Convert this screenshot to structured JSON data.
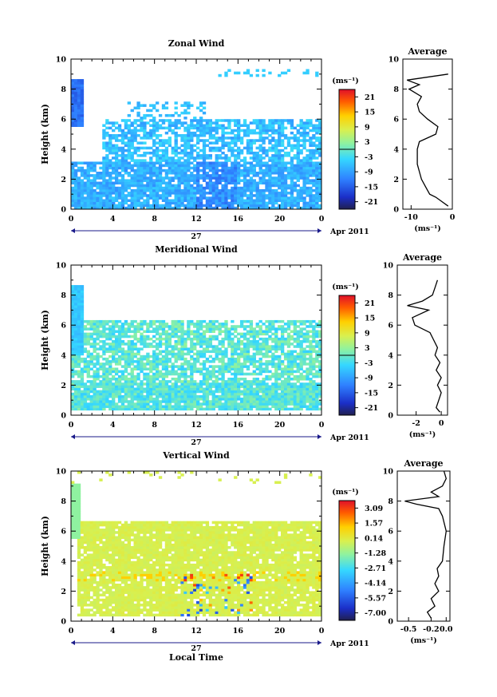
{
  "chart_data": [
    {
      "type": "heatmap",
      "title": "Zonal Wind",
      "ylabel": "Height (km)",
      "xlabel": "",
      "ylim": [
        0,
        10
      ],
      "xlim": [
        0,
        24
      ],
      "x_ticks": [
        "0",
        "4",
        "8",
        "12",
        "16",
        "20",
        "0"
      ],
      "y_ticks": [
        "0",
        "2",
        "4",
        "6",
        "8",
        "10"
      ],
      "date_label": "27",
      "month_label": "Apr 2011",
      "colorbar": {
        "unit": "(ms⁻¹)",
        "ticks": [
          "21",
          "15",
          "9",
          "3",
          "-3",
          "-9",
          "-15",
          "-21"
        ],
        "range": [
          -24,
          24
        ]
      },
      "average": {
        "title": "Average",
        "xlabel": "(ms⁻¹)",
        "x_ticks": [
          "-10",
          "0"
        ],
        "xlim": [
          -12,
          0
        ],
        "heights": [
          0.2,
          0.5,
          0.8,
          1.0,
          1.5,
          2.0,
          2.5,
          3.0,
          3.5,
          4.0,
          4.5,
          5.0,
          5.5,
          6.0,
          6.5,
          7.0,
          7.5,
          8.0,
          8.3,
          8.6,
          9.0
        ],
        "values": [
          -1.0,
          -2.5,
          -4.0,
          -5.5,
          -6.5,
          -7.5,
          -8.0,
          -8.5,
          -8.5,
          -8.5,
          -8.0,
          -4.0,
          -3.5,
          -6.0,
          -8.0,
          -8.5,
          -7.5,
          -10.5,
          -8.0,
          -11.0,
          -1.0
        ]
      }
    },
    {
      "type": "heatmap",
      "title": "Meridional Wind",
      "ylabel": "Height (km)",
      "xlabel": "",
      "ylim": [
        0,
        10
      ],
      "xlim": [
        0,
        24
      ],
      "x_ticks": [
        "0",
        "4",
        "8",
        "12",
        "16",
        "20",
        "0"
      ],
      "y_ticks": [
        "0",
        "2",
        "4",
        "6",
        "8",
        "10"
      ],
      "date_label": "27",
      "month_label": "Apr 2011",
      "colorbar": {
        "unit": "(ms⁻¹)",
        "ticks": [
          "21",
          "15",
          "9",
          "3",
          "-3",
          "-9",
          "-15",
          "-21"
        ],
        "range": [
          -24,
          24
        ]
      },
      "average": {
        "title": "Average",
        "xlabel": "(ms⁻¹)",
        "x_ticks": [
          "-2",
          "0"
        ],
        "xlim": [
          -3.5,
          0.5
        ],
        "heights": [
          0.2,
          0.5,
          1.0,
          1.5,
          2.0,
          2.5,
          3.0,
          3.5,
          4.0,
          4.5,
          5.0,
          5.5,
          6.0,
          6.5,
          7.0,
          7.3,
          7.6,
          8.0,
          8.5,
          9.0
        ],
        "values": [
          -0.1,
          -0.4,
          -0.2,
          0.0,
          -0.3,
          0.0,
          -0.4,
          -0.1,
          -0.5,
          -0.3,
          -0.6,
          -0.9,
          -2.1,
          -2.3,
          -1.0,
          -2.7,
          -1.5,
          -0.7,
          -0.5,
          -0.3
        ]
      }
    },
    {
      "type": "heatmap",
      "title": "Vertical Wind",
      "ylabel": "Height (km)",
      "xlabel": "Local Time",
      "ylim": [
        0,
        10
      ],
      "xlim": [
        0,
        24
      ],
      "x_ticks": [
        "0",
        "4",
        "8",
        "12",
        "16",
        "20",
        "0"
      ],
      "y_ticks": [
        "0",
        "2",
        "4",
        "6",
        "8",
        "10"
      ],
      "date_label": "27",
      "month_label": "Apr 2011",
      "colorbar": {
        "unit": "(ms⁻¹)",
        "ticks": [
          "3.09",
          "1.57",
          "0.14",
          "-1.28",
          "-2.71",
          "-4.14",
          "-5.57",
          "-7.00"
        ],
        "range": [
          -7.7,
          3.8
        ]
      },
      "average": {
        "title": "Average",
        "xlabel": "(ms⁻¹)",
        "x_ticks": [
          "-0.5",
          "-0.2",
          "0.0"
        ],
        "xlim": [
          -0.65,
          0.05
        ],
        "heights": [
          0.2,
          0.6,
          1.0,
          1.5,
          2.0,
          2.5,
          3.0,
          3.5,
          4.0,
          5.0,
          6.0,
          7.0,
          7.5,
          7.8,
          8.0,
          8.3,
          8.6,
          9.0,
          9.5,
          10.0
        ],
        "values": [
          -0.2,
          -0.25,
          -0.15,
          -0.2,
          -0.1,
          -0.15,
          -0.1,
          -0.12,
          -0.05,
          -0.03,
          0.0,
          -0.05,
          -0.1,
          -0.4,
          -0.55,
          -0.1,
          -0.2,
          -0.05,
          0.0,
          -0.03
        ]
      }
    }
  ]
}
